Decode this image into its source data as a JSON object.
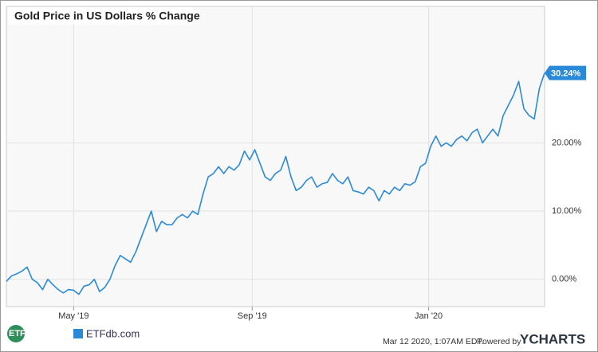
{
  "chart_data": {
    "type": "line",
    "title": "Gold Price in US Dollars % Change",
    "series": [
      {
        "name": "Gold Price in US Dollars % Change",
        "color": "#2b8ad8",
        "values": [
          -0.3,
          0.5,
          0.8,
          1.2,
          1.8,
          0,
          -0.5,
          -1.5,
          0,
          -0.8,
          -1.5,
          -2,
          -1.5,
          -1.6,
          -2.2,
          -1,
          -0.8,
          0,
          -1.8,
          -1.2,
          0,
          2,
          3.5,
          3,
          2.5,
          4,
          6,
          8,
          10,
          7,
          8.5,
          8,
          8,
          9,
          9.5,
          9,
          10,
          9.5,
          12.5,
          15,
          15.5,
          16.5,
          15.5,
          16.5,
          16,
          16.8,
          18.8,
          17.5,
          19,
          17,
          15,
          14.5,
          15.5,
          16,
          18,
          15,
          13,
          13.5,
          14.5,
          15,
          13.5,
          14,
          14.2,
          15.5,
          14.5,
          14,
          15,
          13,
          12.8,
          12.5,
          13.5,
          13,
          11.5,
          13,
          12.5,
          13.5,
          13,
          14,
          13.8,
          14.3,
          16.5,
          17,
          19.5,
          21,
          19.5,
          20,
          19.5,
          20.5,
          21,
          20.3,
          21.5,
          22,
          20,
          21,
          22,
          21,
          24,
          25.5,
          27,
          29,
          25,
          24,
          23.5,
          28,
          30.24
        ],
        "last_value_label": "30.24%"
      }
    ],
    "xlim": [
      0,
      104
    ],
    "xticks": [
      {
        "value": 13,
        "label": "May '19"
      },
      {
        "value": 47.5,
        "label": "Sep '19"
      },
      {
        "value": 81.6,
        "label": "Jan '20"
      }
    ],
    "ylim": [
      -4,
      40
    ],
    "yticks": [
      {
        "value": 0,
        "label": "0.00%"
      },
      {
        "value": 10,
        "label": "10.00%"
      },
      {
        "value": 20,
        "label": "20.00%"
      }
    ],
    "grid": true
  },
  "footer": {
    "logo_left": "ETF TRENDS",
    "logo_mid": "ETFdb.com",
    "timestamp": "Mar 12 2020, 1:07AM EDT.",
    "powered_by": "Powered by",
    "brand": "YCHARTS"
  }
}
